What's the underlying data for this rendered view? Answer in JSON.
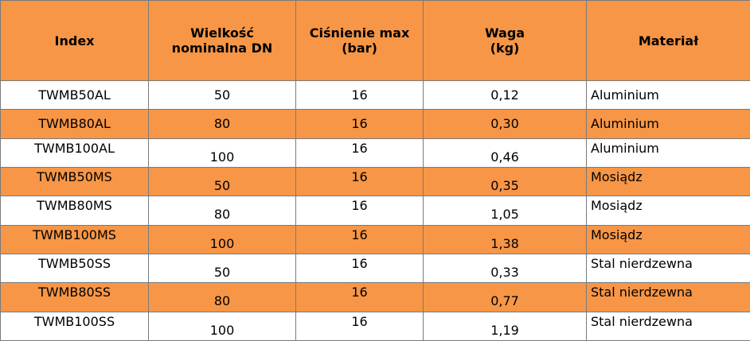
{
  "table": {
    "headers": {
      "index": "Index",
      "dn_line1": "Wielkość",
      "dn_line2": "nominalna DN",
      "pressure_line1": "Ciśnienie max",
      "pressure_line2": "(bar)",
      "weight_line1": "Waga",
      "weight_line2": "(kg)",
      "material": "Materiał"
    },
    "rows": [
      {
        "index": "TWMB50AL",
        "dn": "50",
        "pressure": "16",
        "weight": "0,12",
        "material": "Aluminium"
      },
      {
        "index": "TWMB80AL",
        "dn": "80",
        "pressure": "16",
        "weight": "0,30",
        "material": "Aluminium"
      },
      {
        "index": "TWMB100AL",
        "dn": "100",
        "pressure": "16",
        "weight": "0,46",
        "material": "Aluminium"
      },
      {
        "index": "TWMB50MS",
        "dn": "50",
        "pressure": "16",
        "weight": "0,35",
        "material": "Mosiądz"
      },
      {
        "index": "TWMB80MS",
        "dn": "80",
        "pressure": "16",
        "weight": "1,05",
        "material": "Mosiądz"
      },
      {
        "index": "TWMB100MS",
        "dn": "100",
        "pressure": "16",
        "weight": "1,38",
        "material": "Mosiądz"
      },
      {
        "index": "TWMB50SS",
        "dn": "50",
        "pressure": "16",
        "weight": "0,33",
        "material": "Stal nierdzewna"
      },
      {
        "index": "TWMB80SS",
        "dn": "80",
        "pressure": "16",
        "weight": "0,77",
        "material": "Stal nierdzewna"
      },
      {
        "index": "TWMB100SS",
        "dn": "100",
        "pressure": "16",
        "weight": "1,19",
        "material": "Stal nierdzewna"
      }
    ]
  },
  "colors": {
    "header_bg": "#f79646",
    "stripe_bg": "#f79646",
    "row_bg": "#ffffff",
    "border": "#7a7a7a"
  }
}
